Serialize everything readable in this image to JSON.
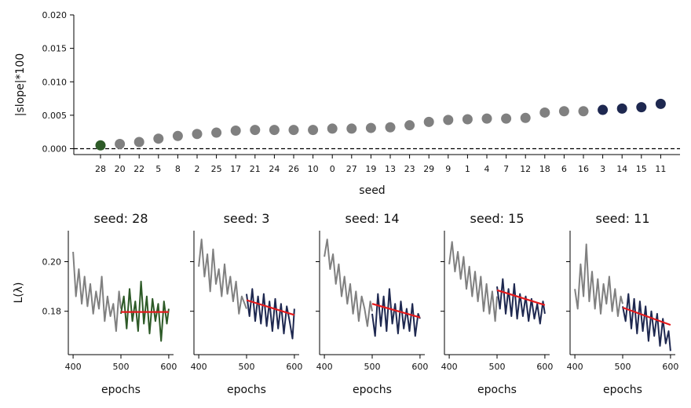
{
  "chart_data": [
    {
      "type": "scatter",
      "title": "",
      "xlabel": "seed",
      "ylabel": "|slope|*100",
      "ylim": [
        0,
        0.02
      ],
      "yticks": [
        "0.000",
        "0.005",
        "0.010",
        "0.015",
        "0.020"
      ],
      "reference_line": {
        "y": 0,
        "style": "dashed",
        "color": "#000000"
      },
      "categories": [
        "28",
        "20",
        "22",
        "5",
        "8",
        "2",
        "25",
        "17",
        "21",
        "24",
        "26",
        "10",
        "0",
        "27",
        "19",
        "13",
        "23",
        "29",
        "9",
        "1",
        "4",
        "7",
        "12",
        "18",
        "6",
        "16",
        "3",
        "14",
        "15",
        "11"
      ],
      "values": [
        0.0005,
        0.0007,
        0.001,
        0.0015,
        0.0019,
        0.0022,
        0.0024,
        0.0027,
        0.0028,
        0.0028,
        0.0028,
        0.0028,
        0.003,
        0.003,
        0.0031,
        0.0032,
        0.0035,
        0.004,
        0.0043,
        0.0044,
        0.0045,
        0.0045,
        0.0046,
        0.0054,
        0.0056,
        0.0056,
        0.0058,
        0.006,
        0.0062,
        0.0067
      ],
      "point_colors": [
        "#2d5a27",
        "#808080",
        "#808080",
        "#808080",
        "#808080",
        "#808080",
        "#808080",
        "#808080",
        "#808080",
        "#808080",
        "#808080",
        "#808080",
        "#808080",
        "#808080",
        "#808080",
        "#808080",
        "#808080",
        "#808080",
        "#808080",
        "#808080",
        "#808080",
        "#808080",
        "#808080",
        "#808080",
        "#808080",
        "#808080",
        "#1e2850",
        "#1e2850",
        "#1e2850",
        "#1e2850"
      ]
    },
    {
      "type": "line",
      "title": "seed: 28",
      "xlabel": "epochs",
      "ylabel": "L(λ)",
      "xlim": [
        390,
        610
      ],
      "ylim": [
        0.1625,
        0.2125
      ],
      "xticks": [
        400,
        500,
        600
      ],
      "yticks": [
        "0.18",
        "0.20"
      ],
      "series": [
        {
          "name": "before",
          "color": "#808080",
          "x": [
            400,
            406,
            412,
            418,
            424,
            430,
            436,
            442,
            448,
            454,
            460,
            466,
            472,
            478,
            484,
            490,
            496,
            500
          ],
          "values": [
            0.204,
            0.186,
            0.197,
            0.183,
            0.194,
            0.182,
            0.191,
            0.179,
            0.188,
            0.181,
            0.194,
            0.176,
            0.186,
            0.178,
            0.183,
            0.172,
            0.188,
            0.181
          ]
        },
        {
          "name": "after",
          "color": "#2d5a27",
          "x": [
            500,
            506,
            512,
            518,
            524,
            530,
            536,
            542,
            548,
            554,
            560,
            566,
            572,
            578,
            584,
            590,
            596,
            600
          ],
          "values": [
            0.179,
            0.186,
            0.173,
            0.189,
            0.176,
            0.184,
            0.172,
            0.192,
            0.175,
            0.186,
            0.171,
            0.185,
            0.176,
            0.183,
            0.168,
            0.184,
            0.175,
            0.181
          ]
        },
        {
          "name": "fit",
          "color": "#e41a1c",
          "x": [
            500,
            600
          ],
          "values": [
            0.1797,
            0.1797
          ]
        }
      ]
    },
    {
      "type": "line",
      "title": "seed: 3",
      "xlabel": "epochs",
      "ylabel": "",
      "xlim": [
        390,
        610
      ],
      "ylim": [
        0.1625,
        0.2125
      ],
      "xticks": [
        400,
        500,
        600
      ],
      "yticks": [
        "0.18",
        "0.20"
      ],
      "series": [
        {
          "name": "before",
          "color": "#808080",
          "x": [
            400,
            406,
            412,
            418,
            424,
            430,
            436,
            442,
            448,
            454,
            460,
            466,
            472,
            478,
            484,
            490,
            496,
            500
          ],
          "values": [
            0.198,
            0.209,
            0.194,
            0.203,
            0.188,
            0.205,
            0.191,
            0.197,
            0.186,
            0.199,
            0.187,
            0.194,
            0.184,
            0.192,
            0.179,
            0.186,
            0.183,
            0.181
          ]
        },
        {
          "name": "after",
          "color": "#1e2850",
          "x": [
            500,
            506,
            512,
            518,
            524,
            530,
            536,
            542,
            548,
            554,
            560,
            566,
            572,
            578,
            584,
            590,
            596,
            600
          ],
          "values": [
            0.187,
            0.178,
            0.189,
            0.176,
            0.186,
            0.175,
            0.187,
            0.174,
            0.184,
            0.172,
            0.185,
            0.173,
            0.183,
            0.171,
            0.182,
            0.176,
            0.169,
            0.181
          ]
        },
        {
          "name": "fit",
          "color": "#e41a1c",
          "x": [
            500,
            600
          ],
          "values": [
            0.1845,
            0.1785
          ]
        }
      ]
    },
    {
      "type": "line",
      "title": "seed: 14",
      "xlabel": "epochs",
      "ylabel": "",
      "xlim": [
        390,
        610
      ],
      "ylim": [
        0.1625,
        0.2125
      ],
      "xticks": [
        400,
        500,
        600
      ],
      "yticks": [
        "0.18",
        "0.20"
      ],
      "series": [
        {
          "name": "before",
          "color": "#808080",
          "x": [
            400,
            406,
            412,
            418,
            424,
            430,
            436,
            442,
            448,
            454,
            460,
            466,
            472,
            478,
            484,
            490,
            496,
            500
          ],
          "values": [
            0.202,
            0.209,
            0.197,
            0.203,
            0.191,
            0.199,
            0.186,
            0.194,
            0.183,
            0.191,
            0.179,
            0.188,
            0.176,
            0.186,
            0.181,
            0.174,
            0.184,
            0.18
          ]
        },
        {
          "name": "after",
          "color": "#1e2850",
          "x": [
            500,
            506,
            512,
            518,
            524,
            530,
            536,
            542,
            548,
            554,
            560,
            566,
            572,
            578,
            584,
            590,
            596,
            600
          ],
          "values": [
            0.179,
            0.17,
            0.187,
            0.174,
            0.186,
            0.172,
            0.189,
            0.175,
            0.183,
            0.171,
            0.184,
            0.173,
            0.181,
            0.172,
            0.183,
            0.17,
            0.179,
            0.177
          ]
        },
        {
          "name": "fit",
          "color": "#e41a1c",
          "x": [
            500,
            600
          ],
          "values": [
            0.183,
            0.1775
          ]
        }
      ]
    },
    {
      "type": "line",
      "title": "seed: 15",
      "xlabel": "epochs",
      "ylabel": "",
      "xlim": [
        390,
        610
      ],
      "ylim": [
        0.1625,
        0.2125
      ],
      "xticks": [
        400,
        500,
        600
      ],
      "yticks": [
        "0.18",
        "0.20"
      ],
      "series": [
        {
          "name": "before",
          "color": "#808080",
          "x": [
            400,
            406,
            412,
            418,
            424,
            430,
            436,
            442,
            448,
            454,
            460,
            466,
            472,
            478,
            484,
            490,
            496,
            500
          ],
          "values": [
            0.199,
            0.208,
            0.196,
            0.204,
            0.193,
            0.202,
            0.189,
            0.198,
            0.186,
            0.196,
            0.184,
            0.194,
            0.18,
            0.191,
            0.179,
            0.188,
            0.176,
            0.186
          ]
        },
        {
          "name": "after",
          "color": "#1e2850",
          "x": [
            500,
            506,
            512,
            518,
            524,
            530,
            536,
            542,
            548,
            554,
            560,
            566,
            572,
            578,
            584,
            590,
            596,
            600
          ],
          "values": [
            0.19,
            0.181,
            0.193,
            0.179,
            0.189,
            0.178,
            0.191,
            0.177,
            0.187,
            0.178,
            0.186,
            0.176,
            0.185,
            0.177,
            0.183,
            0.175,
            0.184,
            0.179
          ]
        },
        {
          "name": "fit",
          "color": "#e41a1c",
          "x": [
            500,
            600
          ],
          "values": [
            0.1885,
            0.1825
          ]
        }
      ]
    },
    {
      "type": "line",
      "title": "seed: 11",
      "xlabel": "epochs",
      "ylabel": "",
      "xlim": [
        390,
        610
      ],
      "ylim": [
        0.1625,
        0.2125
      ],
      "xticks": [
        400,
        500,
        600
      ],
      "yticks": [
        "0.18",
        "0.20"
      ],
      "series": [
        {
          "name": "before",
          "color": "#808080",
          "x": [
            400,
            406,
            412,
            418,
            424,
            430,
            436,
            442,
            448,
            454,
            460,
            466,
            472,
            478,
            484,
            490,
            496,
            500
          ],
          "values": [
            0.189,
            0.181,
            0.199,
            0.186,
            0.207,
            0.184,
            0.196,
            0.181,
            0.193,
            0.179,
            0.191,
            0.183,
            0.194,
            0.18,
            0.189,
            0.178,
            0.186,
            0.183
          ]
        },
        {
          "name": "after",
          "color": "#1e2850",
          "x": [
            500,
            506,
            512,
            518,
            524,
            530,
            536,
            542,
            548,
            554,
            560,
            566,
            572,
            578,
            584,
            590,
            596,
            600
          ],
          "values": [
            0.182,
            0.176,
            0.187,
            0.173,
            0.185,
            0.171,
            0.184,
            0.172,
            0.182,
            0.168,
            0.18,
            0.17,
            0.179,
            0.166,
            0.177,
            0.167,
            0.172,
            0.164
          ]
        },
        {
          "name": "fit",
          "color": "#e41a1c",
          "x": [
            500,
            600
          ],
          "values": [
            0.1815,
            0.1745
          ]
        }
      ]
    }
  ]
}
